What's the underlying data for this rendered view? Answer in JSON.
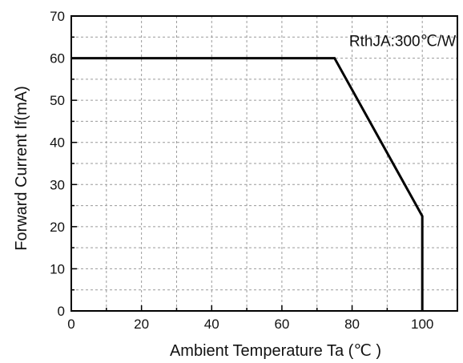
{
  "chart_data": {
    "type": "line",
    "title": "",
    "xlabel": "Ambient Temperature  Ta (℃ )",
    "ylabel": "Forward Current  If(mA)",
    "xlim": [
      0,
      110
    ],
    "ylim": [
      0,
      70
    ],
    "xticks": [
      0,
      20,
      40,
      60,
      80,
      100
    ],
    "yticks": [
      0,
      10,
      20,
      30,
      40,
      50,
      60,
      70
    ],
    "grid": true,
    "grid_style": "dashed",
    "series": [
      {
        "x": [
          0,
          75,
          100,
          100
        ],
        "y": [
          60,
          60,
          22.5,
          0
        ],
        "color": "#000000"
      }
    ],
    "annotation": {
      "text": "RthJA:300℃/W",
      "x": 100,
      "y": 64
    }
  }
}
